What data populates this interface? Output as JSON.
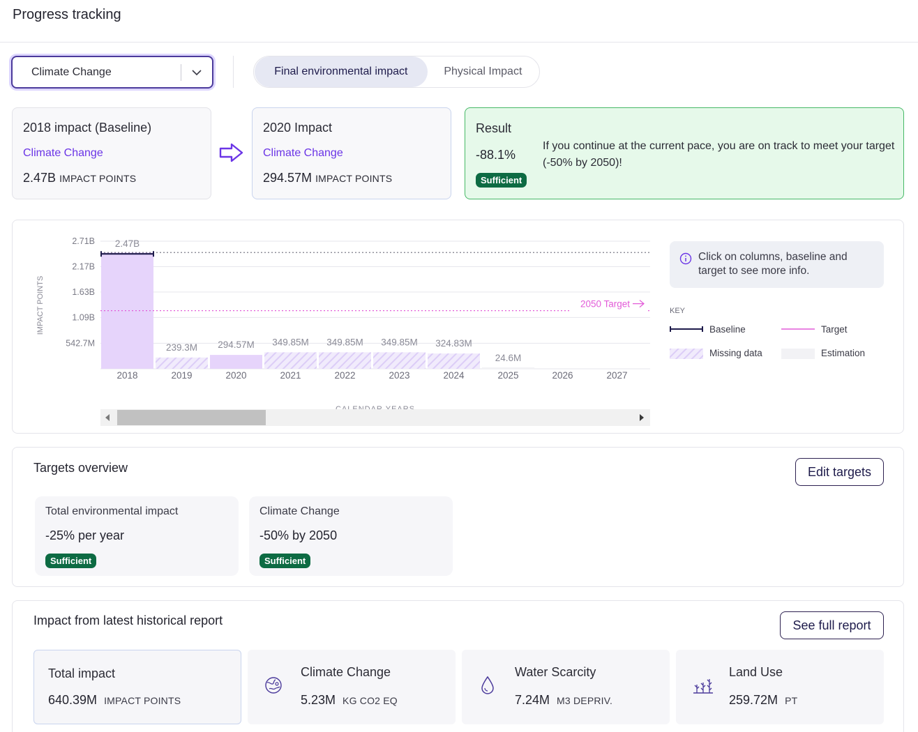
{
  "page": {
    "title": "Progress tracking"
  },
  "filter": {
    "selected": "Climate Change"
  },
  "toggle": {
    "options": [
      "Final environmental impact",
      "Physical Impact"
    ],
    "active": "Final environmental impact"
  },
  "baseline_card": {
    "title": "2018 impact (Baseline)",
    "category": "Climate Change",
    "value": "2.47B",
    "unit": "IMPACT POINTS"
  },
  "current_card": {
    "title": "2020 Impact",
    "category": "Climate Change",
    "value": "294.57M",
    "unit": "IMPACT POINTS"
  },
  "result_card": {
    "title": "Result",
    "percent": "-88.1%",
    "badge": "Sufficient",
    "message": "If you continue at the current pace, you are on track to meet your target (-50% by 2050)!"
  },
  "chart_data": {
    "type": "bar",
    "categories": [
      "2018",
      "2019",
      "2020",
      "2021",
      "2022",
      "2023",
      "2024",
      "2025",
      "2026",
      "2027"
    ],
    "values": [
      2470,
      239.3,
      294.57,
      349.85,
      349.85,
      349.85,
      324.83,
      24.6,
      null,
      null
    ],
    "data_labels": [
      "2.47B",
      "239.3M",
      "294.57M",
      "349.85M",
      "349.85M",
      "349.85M",
      "324.83M",
      "24.6M",
      "",
      ""
    ],
    "bar_kinds": [
      "actual",
      "missing",
      "actual",
      "missing",
      "missing",
      "missing",
      "missing",
      "estimation",
      "none",
      "none"
    ],
    "y_ticks": [
      "2.71B",
      "2.17B",
      "1.63B",
      "1.09B",
      "542.7M"
    ],
    "y_tick_values": [
      2710,
      2170,
      1630,
      1090,
      542.7
    ],
    "ylim": [
      0,
      2710
    ],
    "ylabel": "IMPACT POINTS",
    "xlabel": "CALENDAR YEARS",
    "baseline": 2470,
    "target": {
      "label": "2050 Target",
      "value": 1235
    },
    "colors": {
      "bar": "#e6d4fb",
      "baseline": "#1e1b4b",
      "target": "#e25bd8",
      "missing": "#ddd0f6"
    }
  },
  "chart_info": {
    "text": "Click on columns, baseline and target to see more info."
  },
  "chart_key": {
    "title": "KEY",
    "items": [
      "Baseline",
      "Target",
      "Missing data",
      "Estimation"
    ]
  },
  "targets": {
    "title": "Targets overview",
    "edit_label": "Edit targets",
    "items": [
      {
        "name": "Total environmental impact",
        "goal": "-25% per year",
        "status": "Sufficient"
      },
      {
        "name": "Climate Change",
        "goal": "-50% by 2050",
        "status": "Sufficient"
      }
    ]
  },
  "history": {
    "title": "Impact from latest historical report",
    "report_label": "See full report",
    "items": [
      {
        "name": "Total impact",
        "value": "640.39M",
        "unit": "IMPACT POINTS",
        "icon": "none"
      },
      {
        "name": "Climate Change",
        "value": "5.23M",
        "unit": "KG CO2 EQ",
        "icon": "globe-icon"
      },
      {
        "name": "Water Scarcity",
        "value": "7.24M",
        "unit": "M3 DEPRIV.",
        "icon": "water-drop-icon"
      },
      {
        "name": "Land Use",
        "value": "259.72M",
        "unit": "PT",
        "icon": "plants-icon"
      }
    ]
  }
}
